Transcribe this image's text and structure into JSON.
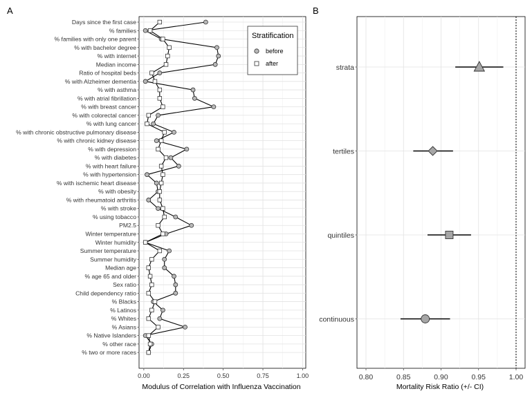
{
  "chart_data": [
    {
      "panel_label": "A",
      "type": "dot-line",
      "xlabel": "Modulus of Correlation with Influenza Vaccination",
      "xlim": [
        -0.03,
        1.02
      ],
      "xticks": [
        0.0,
        0.25,
        0.5,
        0.75,
        1.0
      ],
      "xtick_labels": [
        "0.00",
        "0.25",
        "0.50",
        "0.75",
        "1.00"
      ],
      "grid": true,
      "legend": {
        "title": "Stratification",
        "position": "top-right"
      },
      "categories": [
        "Days since the first case",
        "% families",
        "% families with only one parent",
        "% with bachelor degree",
        "% with internet",
        "Median income",
        "Ratio of hospital beds",
        "% with Alzheimer dementia",
        "% with asthma",
        "% with atrial fibrillation",
        "% with breast cancer",
        "% with colorectal cancer",
        "% with lung cancer",
        "% with chronic obstructive pulmonary disease",
        "% with chronic kidney disease",
        "% with depression",
        "% with diabetes",
        "% with heart failure",
        "% with hypertension",
        "% with ischemic heart disease",
        "% with obesity",
        "% with rheumatoid arthritis",
        "% with stroke",
        "% using tobacco",
        "PM2.5",
        "Winter temperature",
        "Winter humidity",
        "Summer temperature",
        "Summer humidity",
        "Median age",
        "% age 65 and older",
        "Sex ratio",
        "Child dependency ratio",
        "% Blacks",
        "% Latinos",
        "% Whites",
        "% Asians",
        "% Native Islanders",
        "% other race",
        "% two or more races"
      ],
      "series": [
        {
          "name": "before",
          "marker": "circle",
          "color": "#b8b8b8",
          "values": [
            0.39,
            0.01,
            0.11,
            0.46,
            0.47,
            0.45,
            0.1,
            0.01,
            0.31,
            0.32,
            0.44,
            0.09,
            0.06,
            0.19,
            0.08,
            0.27,
            0.17,
            0.22,
            0.02,
            0.08,
            0.09,
            0.03,
            0.09,
            0.2,
            0.3,
            0.14,
            0.01,
            0.16,
            0.13,
            0.13,
            0.19,
            0.2,
            0.2,
            0.06,
            0.12,
            0.1,
            0.26,
            0.01,
            0.05,
            0.03
          ]
        },
        {
          "name": "after",
          "marker": "square",
          "color": "#ffffff",
          "values": [
            0.1,
            0.04,
            0.12,
            0.16,
            0.15,
            0.14,
            0.05,
            0.07,
            0.1,
            0.1,
            0.12,
            0.03,
            0.02,
            0.13,
            0.11,
            0.09,
            0.14,
            0.11,
            0.12,
            0.11,
            0.1,
            0.1,
            0.12,
            0.13,
            0.09,
            0.12,
            0.01,
            0.1,
            0.05,
            0.03,
            0.04,
            0.05,
            0.03,
            0.07,
            0.05,
            0.03,
            0.09,
            0.03,
            0.04,
            0.03
          ]
        }
      ]
    },
    {
      "panel_label": "B",
      "type": "dot-errorbar",
      "xlabel": "Mortality Risk Ratio (+/- CI)",
      "xlim": [
        0.788,
        1.012
      ],
      "xticks": [
        0.8,
        0.85,
        0.9,
        0.95,
        1.0
      ],
      "xtick_labels": [
        "0.80",
        "0.85",
        "0.90",
        "0.95",
        "1.00"
      ],
      "reference_line": 1.0,
      "grid": true,
      "categories": [
        "strata",
        "tertiles",
        "quintiles",
        "continuous"
      ],
      "points": [
        {
          "value": 0.951,
          "low": 0.919,
          "high": 0.983,
          "marker": "triangle"
        },
        {
          "value": 0.889,
          "low": 0.863,
          "high": 0.916,
          "marker": "diamond"
        },
        {
          "value": 0.911,
          "low": 0.882,
          "high": 0.94,
          "marker": "square"
        },
        {
          "value": 0.879,
          "low": 0.846,
          "high": 0.912,
          "marker": "circle"
        }
      ],
      "marker_color": "#a6a6a6"
    }
  ]
}
